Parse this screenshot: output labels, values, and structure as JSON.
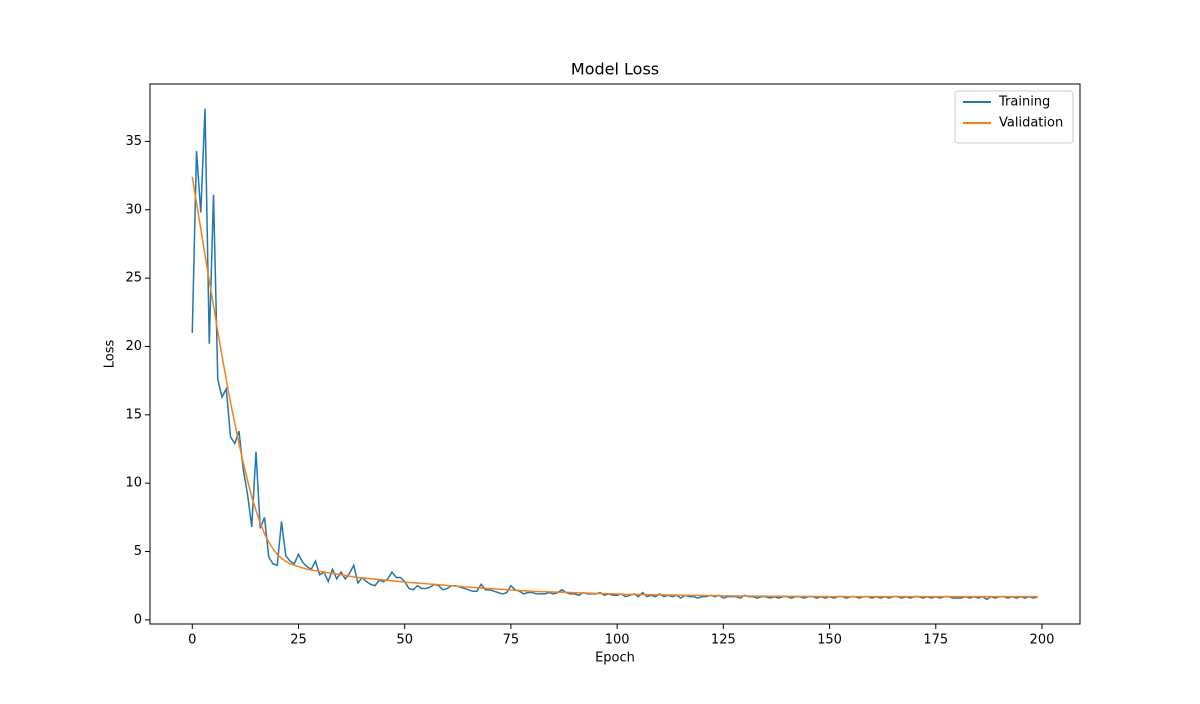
{
  "chart_data": {
    "type": "line",
    "title": "Model Loss",
    "x_label": "Epoch",
    "y_label": "Loss",
    "x": [
      0,
      1,
      2,
      3,
      4,
      5,
      6,
      7,
      8,
      9,
      10,
      11,
      12,
      13,
      14,
      15,
      16,
      17,
      18,
      19,
      20,
      21,
      22,
      23,
      24,
      25,
      26,
      27,
      28,
      29,
      30,
      31,
      32,
      33,
      34,
      35,
      36,
      37,
      38,
      39,
      40,
      41,
      42,
      43,
      44,
      45,
      46,
      47,
      48,
      49,
      50,
      51,
      52,
      53,
      54,
      55,
      56,
      57,
      58,
      59,
      60,
      61,
      62,
      63,
      64,
      65,
      66,
      67,
      68,
      69,
      70,
      71,
      72,
      73,
      74,
      75,
      76,
      77,
      78,
      79,
      80,
      81,
      82,
      83,
      84,
      85,
      86,
      87,
      88,
      89,
      90,
      91,
      92,
      93,
      94,
      95,
      96,
      97,
      98,
      99,
      100,
      101,
      102,
      103,
      104,
      105,
      106,
      107,
      108,
      109,
      110,
      111,
      112,
      113,
      114,
      115,
      116,
      117,
      118,
      119,
      120,
      121,
      122,
      123,
      124,
      125,
      126,
      127,
      128,
      129,
      130,
      131,
      132,
      133,
      134,
      135,
      136,
      137,
      138,
      139,
      140,
      141,
      142,
      143,
      144,
      145,
      146,
      147,
      148,
      149,
      150,
      151,
      152,
      153,
      154,
      155,
      156,
      157,
      158,
      159,
      160,
      161,
      162,
      163,
      164,
      165,
      166,
      167,
      168,
      169,
      170,
      171,
      172,
      173,
      174,
      175,
      176,
      177,
      178,
      179,
      180,
      181,
      182,
      183,
      184,
      185,
      186,
      187,
      188,
      189,
      190,
      191,
      192,
      193,
      194,
      195,
      196,
      197,
      198,
      199
    ],
    "series": [
      {
        "name": "Training",
        "color": "#1f77b4",
        "values": [
          21.0,
          34.3,
          29.8,
          37.4,
          20.2,
          31.1,
          17.6,
          16.3,
          16.9,
          13.4,
          12.9,
          13.8,
          11.0,
          9.2,
          6.8,
          12.3,
          6.7,
          7.5,
          4.6,
          4.1,
          4.0,
          7.2,
          4.7,
          4.3,
          4.1,
          4.8,
          4.2,
          3.9,
          3.7,
          4.3,
          3.3,
          3.5,
          2.8,
          3.7,
          3.0,
          3.5,
          3.0,
          3.4,
          4.0,
          2.7,
          3.1,
          2.8,
          2.6,
          2.5,
          2.9,
          2.8,
          3.0,
          3.5,
          3.1,
          3.1,
          2.8,
          2.3,
          2.2,
          2.5,
          2.3,
          2.3,
          2.4,
          2.6,
          2.5,
          2.2,
          2.3,
          2.5,
          2.5,
          2.4,
          2.3,
          2.2,
          2.1,
          2.1,
          2.6,
          2.2,
          2.2,
          2.1,
          2.0,
          1.9,
          2.0,
          2.5,
          2.2,
          2.1,
          1.9,
          2.0,
          2.0,
          1.9,
          1.9,
          1.9,
          2.0,
          1.9,
          2.0,
          2.2,
          2.0,
          1.9,
          1.9,
          1.8,
          2.0,
          1.9,
          1.9,
          1.9,
          2.0,
          1.8,
          1.9,
          1.8,
          1.8,
          1.9,
          1.7,
          1.8,
          1.9,
          1.7,
          2.0,
          1.7,
          1.8,
          1.7,
          1.9,
          1.7,
          1.8,
          1.7,
          1.8,
          1.6,
          1.8,
          1.7,
          1.7,
          1.6,
          1.7,
          1.7,
          1.8,
          1.7,
          1.8,
          1.6,
          1.7,
          1.7,
          1.7,
          1.6,
          1.8,
          1.7,
          1.7,
          1.6,
          1.7,
          1.7,
          1.6,
          1.7,
          1.6,
          1.7,
          1.7,
          1.6,
          1.7,
          1.7,
          1.6,
          1.7,
          1.7,
          1.6,
          1.7,
          1.6,
          1.7,
          1.6,
          1.7,
          1.7,
          1.6,
          1.7,
          1.7,
          1.6,
          1.7,
          1.7,
          1.6,
          1.7,
          1.6,
          1.7,
          1.6,
          1.7,
          1.7,
          1.6,
          1.7,
          1.6,
          1.7,
          1.7,
          1.6,
          1.7,
          1.6,
          1.7,
          1.6,
          1.7,
          1.7,
          1.6,
          1.6,
          1.6,
          1.7,
          1.6,
          1.7,
          1.6,
          1.7,
          1.5,
          1.7,
          1.6,
          1.7,
          1.7,
          1.6,
          1.7,
          1.6,
          1.7,
          1.6,
          1.7,
          1.6,
          1.7
        ]
      },
      {
        "name": "Validation",
        "color": "#ff7f0e",
        "values": [
          32.4,
          30.5,
          28.6,
          26.7,
          24.8,
          23.0,
          21.1,
          19.3,
          17.6,
          15.9,
          14.4,
          12.9,
          11.5,
          10.2,
          9.0,
          8.0,
          7.1,
          6.3,
          5.7,
          5.2,
          4.8,
          4.5,
          4.3,
          4.1,
          4.0,
          3.9,
          3.8,
          3.7,
          3.65,
          3.6,
          3.55,
          3.5,
          3.45,
          3.4,
          3.35,
          3.3,
          3.25,
          3.2,
          3.15,
          3.1,
          3.07,
          3.04,
          3.01,
          2.98,
          2.95,
          2.92,
          2.89,
          2.86,
          2.83,
          2.8,
          2.77,
          2.74,
          2.72,
          2.7,
          2.67,
          2.65,
          2.62,
          2.6,
          2.57,
          2.55,
          2.52,
          2.5,
          2.47,
          2.45,
          2.42,
          2.4,
          2.37,
          2.35,
          2.33,
          2.31,
          2.29,
          2.27,
          2.25,
          2.23,
          2.21,
          2.19,
          2.17,
          2.15,
          2.13,
          2.11,
          2.09,
          2.08,
          2.07,
          2.06,
          2.05,
          2.04,
          2.03,
          2.02,
          2.01,
          2.0,
          1.99,
          1.98,
          1.97,
          1.96,
          1.95,
          1.94,
          1.93,
          1.92,
          1.91,
          1.9,
          1.89,
          1.88,
          1.87,
          1.87,
          1.86,
          1.86,
          1.85,
          1.85,
          1.84,
          1.84,
          1.83,
          1.83,
          1.82,
          1.82,
          1.81,
          1.81,
          1.8,
          1.8,
          1.79,
          1.79,
          1.78,
          1.78,
          1.77,
          1.77,
          1.77,
          1.76,
          1.76,
          1.76,
          1.75,
          1.75,
          1.75,
          1.75,
          1.74,
          1.74,
          1.74,
          1.74,
          1.73,
          1.73,
          1.73,
          1.73,
          1.72,
          1.72,
          1.72,
          1.72,
          1.72,
          1.71,
          1.71,
          1.71,
          1.71,
          1.71,
          1.7,
          1.7,
          1.7,
          1.7,
          1.7,
          1.7,
          1.7,
          1.7,
          1.7,
          1.7,
          1.7,
          1.7,
          1.7,
          1.7,
          1.7,
          1.7,
          1.7,
          1.7,
          1.7,
          1.7,
          1.7,
          1.7,
          1.7,
          1.7,
          1.7,
          1.7,
          1.7,
          1.7,
          1.7,
          1.7,
          1.7,
          1.7,
          1.7,
          1.7,
          1.7,
          1.7,
          1.7,
          1.7,
          1.7,
          1.7,
          1.7,
          1.7,
          1.7,
          1.7,
          1.7,
          1.7,
          1.7,
          1.7,
          1.7,
          1.7
        ]
      }
    ],
    "xlim": [
      -9.95,
      208.95
    ],
    "xticks": [
      0,
      25,
      50,
      75,
      100,
      125,
      150,
      175,
      200
    ],
    "ylim": [
      -0.3,
      39.2
    ],
    "yticks": [
      0,
      5,
      10,
      15,
      20,
      25,
      30,
      35
    ],
    "grid": false,
    "legend": "upper right"
  }
}
